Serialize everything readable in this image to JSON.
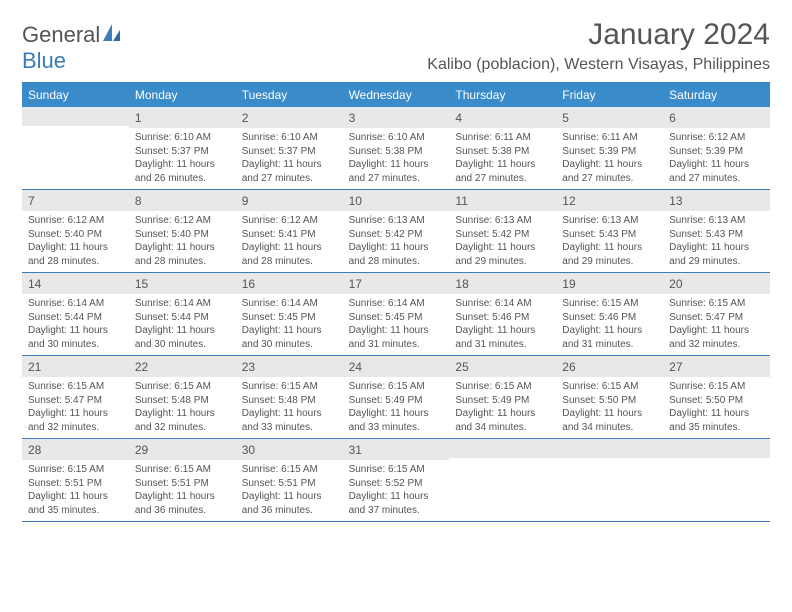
{
  "brand": {
    "general": "General",
    "blue": "Blue"
  },
  "title": "January 2024",
  "subtitle": "Kalibo (poblacion), Western Visayas, Philippines",
  "dayNames": [
    "Sunday",
    "Monday",
    "Tuesday",
    "Wednesday",
    "Thursday",
    "Friday",
    "Saturday"
  ],
  "colors": {
    "headerBg": "#3a8bc9",
    "accentLine": "#3a7db8",
    "numBg": "#e8e8e8",
    "text": "#555555"
  },
  "weeks": [
    [
      {
        "n": "",
        "sr": "",
        "ss": "",
        "dl": ""
      },
      {
        "n": "1",
        "sr": "Sunrise: 6:10 AM",
        "ss": "Sunset: 5:37 PM",
        "dl": "Daylight: 11 hours and 26 minutes."
      },
      {
        "n": "2",
        "sr": "Sunrise: 6:10 AM",
        "ss": "Sunset: 5:37 PM",
        "dl": "Daylight: 11 hours and 27 minutes."
      },
      {
        "n": "3",
        "sr": "Sunrise: 6:10 AM",
        "ss": "Sunset: 5:38 PM",
        "dl": "Daylight: 11 hours and 27 minutes."
      },
      {
        "n": "4",
        "sr": "Sunrise: 6:11 AM",
        "ss": "Sunset: 5:38 PM",
        "dl": "Daylight: 11 hours and 27 minutes."
      },
      {
        "n": "5",
        "sr": "Sunrise: 6:11 AM",
        "ss": "Sunset: 5:39 PM",
        "dl": "Daylight: 11 hours and 27 minutes."
      },
      {
        "n": "6",
        "sr": "Sunrise: 6:12 AM",
        "ss": "Sunset: 5:39 PM",
        "dl": "Daylight: 11 hours and 27 minutes."
      }
    ],
    [
      {
        "n": "7",
        "sr": "Sunrise: 6:12 AM",
        "ss": "Sunset: 5:40 PM",
        "dl": "Daylight: 11 hours and 28 minutes."
      },
      {
        "n": "8",
        "sr": "Sunrise: 6:12 AM",
        "ss": "Sunset: 5:40 PM",
        "dl": "Daylight: 11 hours and 28 minutes."
      },
      {
        "n": "9",
        "sr": "Sunrise: 6:12 AM",
        "ss": "Sunset: 5:41 PM",
        "dl": "Daylight: 11 hours and 28 minutes."
      },
      {
        "n": "10",
        "sr": "Sunrise: 6:13 AM",
        "ss": "Sunset: 5:42 PM",
        "dl": "Daylight: 11 hours and 28 minutes."
      },
      {
        "n": "11",
        "sr": "Sunrise: 6:13 AM",
        "ss": "Sunset: 5:42 PM",
        "dl": "Daylight: 11 hours and 29 minutes."
      },
      {
        "n": "12",
        "sr": "Sunrise: 6:13 AM",
        "ss": "Sunset: 5:43 PM",
        "dl": "Daylight: 11 hours and 29 minutes."
      },
      {
        "n": "13",
        "sr": "Sunrise: 6:13 AM",
        "ss": "Sunset: 5:43 PM",
        "dl": "Daylight: 11 hours and 29 minutes."
      }
    ],
    [
      {
        "n": "14",
        "sr": "Sunrise: 6:14 AM",
        "ss": "Sunset: 5:44 PM",
        "dl": "Daylight: 11 hours and 30 minutes."
      },
      {
        "n": "15",
        "sr": "Sunrise: 6:14 AM",
        "ss": "Sunset: 5:44 PM",
        "dl": "Daylight: 11 hours and 30 minutes."
      },
      {
        "n": "16",
        "sr": "Sunrise: 6:14 AM",
        "ss": "Sunset: 5:45 PM",
        "dl": "Daylight: 11 hours and 30 minutes."
      },
      {
        "n": "17",
        "sr": "Sunrise: 6:14 AM",
        "ss": "Sunset: 5:45 PM",
        "dl": "Daylight: 11 hours and 31 minutes."
      },
      {
        "n": "18",
        "sr": "Sunrise: 6:14 AM",
        "ss": "Sunset: 5:46 PM",
        "dl": "Daylight: 11 hours and 31 minutes."
      },
      {
        "n": "19",
        "sr": "Sunrise: 6:15 AM",
        "ss": "Sunset: 5:46 PM",
        "dl": "Daylight: 11 hours and 31 minutes."
      },
      {
        "n": "20",
        "sr": "Sunrise: 6:15 AM",
        "ss": "Sunset: 5:47 PM",
        "dl": "Daylight: 11 hours and 32 minutes."
      }
    ],
    [
      {
        "n": "21",
        "sr": "Sunrise: 6:15 AM",
        "ss": "Sunset: 5:47 PM",
        "dl": "Daylight: 11 hours and 32 minutes."
      },
      {
        "n": "22",
        "sr": "Sunrise: 6:15 AM",
        "ss": "Sunset: 5:48 PM",
        "dl": "Daylight: 11 hours and 32 minutes."
      },
      {
        "n": "23",
        "sr": "Sunrise: 6:15 AM",
        "ss": "Sunset: 5:48 PM",
        "dl": "Daylight: 11 hours and 33 minutes."
      },
      {
        "n": "24",
        "sr": "Sunrise: 6:15 AM",
        "ss": "Sunset: 5:49 PM",
        "dl": "Daylight: 11 hours and 33 minutes."
      },
      {
        "n": "25",
        "sr": "Sunrise: 6:15 AM",
        "ss": "Sunset: 5:49 PM",
        "dl": "Daylight: 11 hours and 34 minutes."
      },
      {
        "n": "26",
        "sr": "Sunrise: 6:15 AM",
        "ss": "Sunset: 5:50 PM",
        "dl": "Daylight: 11 hours and 34 minutes."
      },
      {
        "n": "27",
        "sr": "Sunrise: 6:15 AM",
        "ss": "Sunset: 5:50 PM",
        "dl": "Daylight: 11 hours and 35 minutes."
      }
    ],
    [
      {
        "n": "28",
        "sr": "Sunrise: 6:15 AM",
        "ss": "Sunset: 5:51 PM",
        "dl": "Daylight: 11 hours and 35 minutes."
      },
      {
        "n": "29",
        "sr": "Sunrise: 6:15 AM",
        "ss": "Sunset: 5:51 PM",
        "dl": "Daylight: 11 hours and 36 minutes."
      },
      {
        "n": "30",
        "sr": "Sunrise: 6:15 AM",
        "ss": "Sunset: 5:51 PM",
        "dl": "Daylight: 11 hours and 36 minutes."
      },
      {
        "n": "31",
        "sr": "Sunrise: 6:15 AM",
        "ss": "Sunset: 5:52 PM",
        "dl": "Daylight: 11 hours and 37 minutes."
      },
      {
        "n": "",
        "sr": "",
        "ss": "",
        "dl": ""
      },
      {
        "n": "",
        "sr": "",
        "ss": "",
        "dl": ""
      },
      {
        "n": "",
        "sr": "",
        "ss": "",
        "dl": ""
      }
    ]
  ]
}
